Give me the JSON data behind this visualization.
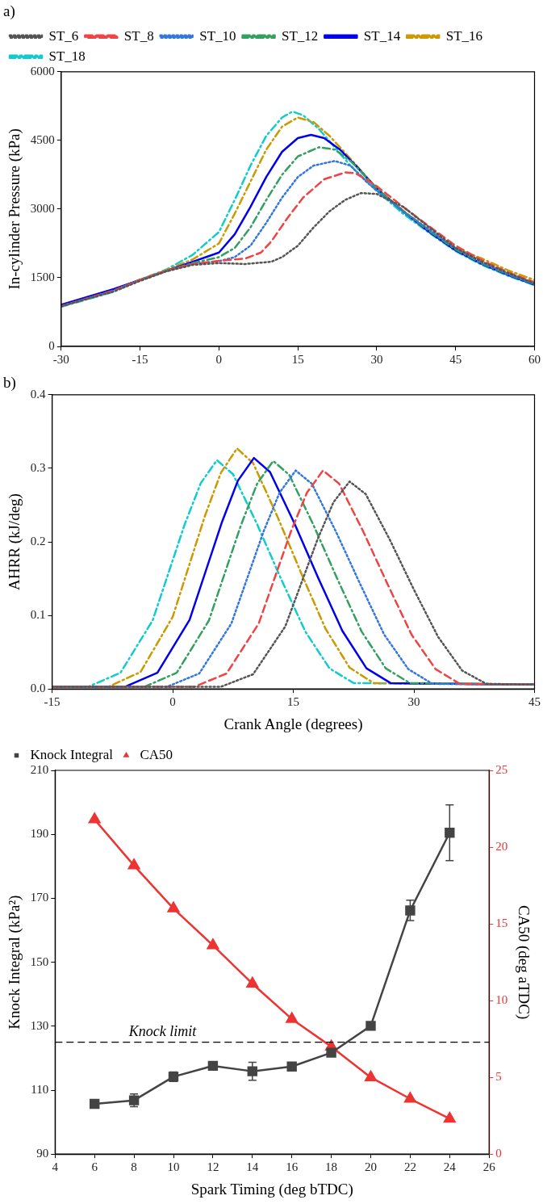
{
  "chart_data": [
    {
      "type": "line",
      "title": "a)",
      "ylabel": "In-cylinder Pressure (kPa)",
      "xlim": [
        -30,
        60
      ],
      "xticks": [
        -30,
        -15,
        0,
        15,
        30,
        45,
        60
      ],
      "ylim": [
        0,
        6000
      ],
      "yticks": [
        0,
        1500,
        3000,
        4500,
        6000
      ],
      "grid": false,
      "legend": "top left",
      "marker": "none",
      "series": [
        {
          "name": "ST_6",
          "color": "#555555",
          "line_style": "dotted",
          "x": [
            -30,
            -20,
            -15,
            -10,
            -5,
            0,
            5,
            10,
            12,
            15,
            18,
            21,
            24,
            27,
            30,
            35,
            40,
            45,
            50,
            55,
            60
          ],
          "values": [
            880,
            1200,
            1430,
            1640,
            1780,
            1820,
            1800,
            1850,
            1950,
            2200,
            2600,
            2950,
            3200,
            3350,
            3330,
            3050,
            2600,
            2150,
            1850,
            1600,
            1380
          ]
        },
        {
          "name": "ST_8",
          "color": "#ee4444",
          "line_style": "dashed",
          "x": [
            -30,
            -20,
            -15,
            -10,
            -5,
            0,
            5,
            8,
            10,
            13,
            16,
            20,
            24,
            26,
            30,
            35,
            40,
            45,
            50,
            55,
            60
          ],
          "values": [
            880,
            1220,
            1450,
            1650,
            1800,
            1870,
            1920,
            2050,
            2300,
            2800,
            3250,
            3650,
            3800,
            3780,
            3500,
            3050,
            2620,
            2200,
            1880,
            1620,
            1400
          ]
        },
        {
          "name": "ST_10",
          "color": "#3377dd",
          "line_style": "dotted",
          "x": [
            -30,
            -20,
            -15,
            -10,
            -5,
            0,
            3,
            6,
            9,
            12,
            15,
            18,
            22,
            25,
            28,
            30,
            35,
            40,
            45,
            50,
            55,
            60
          ],
          "values": [
            880,
            1220,
            1450,
            1650,
            1800,
            1860,
            1950,
            2200,
            2700,
            3250,
            3700,
            3950,
            4050,
            3950,
            3600,
            3400,
            2950,
            2550,
            2150,
            1830,
            1580,
            1360
          ]
        },
        {
          "name": "ST_12",
          "color": "#33a060",
          "line_style": "dashdot",
          "x": [
            -30,
            -20,
            -15,
            -10,
            -5,
            0,
            3,
            6,
            9,
            12,
            15,
            19,
            22,
            25,
            28,
            30,
            35,
            40,
            45,
            50,
            55,
            60
          ],
          "values": [
            880,
            1220,
            1450,
            1650,
            1820,
            1950,
            2150,
            2600,
            3200,
            3750,
            4150,
            4350,
            4300,
            4050,
            3700,
            3450,
            2950,
            2520,
            2120,
            1810,
            1570,
            1360
          ]
        },
        {
          "name": "ST_14",
          "color": "#0000ee",
          "line_style": "solid",
          "x": [
            -30,
            -20,
            -15,
            -10,
            -5,
            0,
            3,
            6,
            9,
            12,
            15,
            17.5,
            20,
            23,
            26,
            30,
            35,
            40,
            45,
            50,
            55,
            60
          ],
          "values": [
            910,
            1255,
            1450,
            1650,
            1850,
            2050,
            2450,
            3050,
            3700,
            4250,
            4550,
            4620,
            4550,
            4300,
            3950,
            3450,
            2950,
            2500,
            2100,
            1800,
            1560,
            1350
          ]
        },
        {
          "name": "ST_16",
          "color": "#cc9900",
          "line_style": "dashdot",
          "x": [
            -30,
            -20,
            -15,
            -10,
            -5,
            0,
            3,
            6,
            9,
            12,
            15,
            18,
            21,
            25,
            30,
            35,
            40,
            45,
            50,
            55,
            60
          ],
          "values": [
            890,
            1230,
            1460,
            1670,
            1900,
            2250,
            2900,
            3600,
            4300,
            4800,
            5000,
            4900,
            4600,
            4100,
            3450,
            2970,
            2540,
            2140,
            1920,
            1660,
            1450
          ]
        },
        {
          "name": "ST_18",
          "color": "#11cccc",
          "line_style": "dashdot",
          "x": [
            -30,
            -20,
            -15,
            -10,
            -5,
            0,
            3,
            6,
            9,
            12,
            14,
            16,
            19,
            22,
            25,
            30,
            35,
            40,
            45,
            50,
            55,
            60
          ],
          "values": [
            865,
            1195,
            1450,
            1680,
            2000,
            2500,
            3200,
            3950,
            4600,
            5000,
            5130,
            5050,
            4750,
            4350,
            3950,
            3400,
            2900,
            2480,
            2080,
            1780,
            1540,
            1340
          ]
        }
      ]
    },
    {
      "type": "line",
      "title": "b)",
      "xlabel": "Crank Angle (degrees)",
      "ylabel": "AHRR (kJ/deg)",
      "xlim": [
        -15,
        45
      ],
      "xticks": [
        -15,
        0,
        15,
        30,
        45
      ],
      "ylim": [
        0,
        0.4
      ],
      "yticks": [
        {
          "value": 0,
          "label": "0.0"
        },
        0.1,
        0.2,
        0.3,
        0.4
      ],
      "grid": false,
      "marker": "none",
      "series": [
        {
          "color": "#555555",
          "line_style": "dotted",
          "x": [
            -15,
            6,
            10,
            14,
            18,
            20,
            22,
            24,
            27,
            30,
            33,
            36,
            39,
            45
          ],
          "values": [
            0.003,
            0.003,
            0.02,
            0.085,
            0.203,
            0.254,
            0.282,
            0.265,
            0.203,
            0.135,
            0.071,
            0.025,
            0.007,
            0.006
          ]
        },
        {
          "color": "#ee4444",
          "line_style": "dashed",
          "x": [
            -15,
            2.7,
            6.7,
            10.7,
            14.7,
            16.7,
            18.7,
            20.7,
            23.7,
            26.7,
            29.7,
            32.7,
            35.7,
            45
          ],
          "values": [
            0.003,
            0.003,
            0.021,
            0.089,
            0.214,
            0.267,
            0.297,
            0.279,
            0.214,
            0.143,
            0.074,
            0.027,
            0.007,
            0.006
          ]
        },
        {
          "color": "#3377dd",
          "line_style": "dotted",
          "x": [
            -15,
            -0.7,
            3.3,
            7.3,
            11.3,
            13.3,
            15.3,
            17.3,
            20.3,
            23.3,
            26.3,
            29.3,
            32.3,
            45
          ],
          "values": [
            0.003,
            0.003,
            0.021,
            0.089,
            0.214,
            0.267,
            0.297,
            0.279,
            0.214,
            0.143,
            0.074,
            0.027,
            0.007,
            0.006
          ]
        },
        {
          "color": "#33a060",
          "line_style": "dashdot",
          "x": [
            -15,
            -3.5,
            0.5,
            4.5,
            8.5,
            10.5,
            12.5,
            14.5,
            17.5,
            20.5,
            23.5,
            26.5,
            29.5,
            45
          ],
          "values": [
            0.003,
            0.003,
            0.022,
            0.093,
            0.223,
            0.279,
            0.31,
            0.291,
            0.223,
            0.149,
            0.078,
            0.028,
            0.008,
            0.006
          ]
        },
        {
          "color": "#0000ee",
          "line_style": "solid",
          "x": [
            -15,
            -5.9,
            -1.9,
            2.1,
            6.1,
            8.1,
            10.1,
            12.1,
            15.1,
            18.1,
            21.1,
            24.1,
            27.1,
            45
          ],
          "values": [
            0.003,
            0.003,
            0.022,
            0.094,
            0.226,
            0.283,
            0.314,
            0.295,
            0.226,
            0.151,
            0.079,
            0.028,
            0.008,
            0.006
          ]
        },
        {
          "color": "#cc9900",
          "line_style": "dashdot",
          "x": [
            -15,
            -8,
            -4,
            0,
            4,
            6,
            8,
            10,
            13,
            16,
            19,
            22,
            25,
            45
          ],
          "values": [
            0.003,
            0.003,
            0.023,
            0.098,
            0.235,
            0.294,
            0.327,
            0.307,
            0.235,
            0.157,
            0.082,
            0.029,
            0.008,
            0.006
          ]
        },
        {
          "color": "#11cccc",
          "line_style": "dashdot",
          "x": [
            -15,
            -10.5,
            -6.5,
            -2.5,
            1.5,
            3.5,
            5.5,
            7.5,
            10.5,
            13.5,
            16.5,
            19.5,
            22.5,
            45
          ],
          "values": [
            0.003,
            0.003,
            0.022,
            0.093,
            0.224,
            0.28,
            0.311,
            0.292,
            0.224,
            0.149,
            0.078,
            0.028,
            0.008,
            0.006
          ]
        }
      ]
    },
    {
      "type": "line",
      "xlabel": "Spark Timing (deg bTDC)",
      "ylabel": "Knock Integral (kPa²)",
      "y2label": "CA50 (deg aTDC)",
      "xlim": [
        4,
        26
      ],
      "xticks": [
        4,
        6,
        8,
        10,
        12,
        14,
        16,
        18,
        20,
        22,
        24,
        26
      ],
      "ylim": [
        90,
        210
      ],
      "yticks": [
        90,
        110,
        130,
        150,
        170,
        190,
        210
      ],
      "y2lim": [
        0,
        25
      ],
      "y2ticks": [
        0,
        5,
        10,
        15,
        20,
        25
      ],
      "grid": false,
      "legend": "top left",
      "ref_lines": [
        {
          "axis": "y",
          "value": 125,
          "label": "Knock limit",
          "line_style": "dashed",
          "color": "#000000"
        }
      ],
      "series": [
        {
          "name": "Knock Integral",
          "color": "#444444",
          "marker": "square",
          "x": [
            6,
            8,
            10,
            12,
            14,
            16,
            18,
            20,
            22,
            24
          ],
          "values": [
            105.7,
            106.8,
            114.2,
            117.6,
            115.9,
            117.4,
            121.7,
            130.1,
            166.2,
            190.5
          ],
          "errors": [
            null,
            2,
            1.5,
            null,
            2.8,
            null,
            null,
            null,
            3.2,
            8.7
          ]
        },
        {
          "name": "CA50",
          "color": "#ee3333",
          "marker": "triangle",
          "axis": "y2",
          "x": [
            6,
            8,
            10,
            12,
            14,
            16,
            18,
            20,
            22,
            24
          ],
          "values": [
            21.8,
            18.8,
            16.0,
            13.6,
            11.1,
            8.8,
            7.0,
            5.0,
            3.6,
            2.3
          ]
        }
      ]
    }
  ]
}
